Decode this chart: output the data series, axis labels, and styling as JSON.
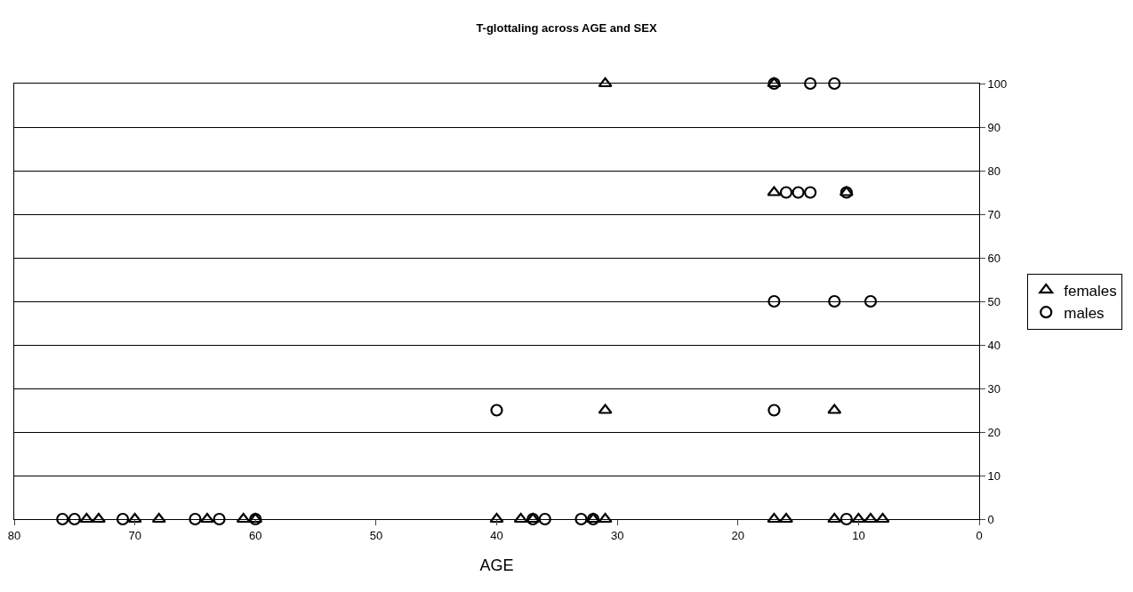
{
  "chart_data": {
    "type": "scatter",
    "title": "T-glottaling across AGE and SEX",
    "xlabel": "AGE",
    "xlim": [
      80,
      0
    ],
    "xticks": [
      80,
      70,
      60,
      50,
      40,
      30,
      20,
      10,
      0
    ],
    "ylim": [
      0,
      100
    ],
    "yticks": [
      0,
      10,
      20,
      30,
      40,
      50,
      60,
      70,
      80,
      90,
      100
    ],
    "grid": "y",
    "legend": "right",
    "series": [
      {
        "name": "females",
        "color": "#000000",
        "marker": "triangle",
        "x": [
          74,
          73,
          70,
          68,
          64,
          61,
          60,
          40,
          38,
          37,
          32,
          31,
          17,
          16,
          12,
          10,
          9,
          8,
          31,
          12,
          17,
          11,
          31,
          17
        ],
        "values": [
          0,
          0,
          0,
          0,
          0,
          0,
          0,
          0,
          0,
          0,
          0,
          0,
          0,
          0,
          0,
          0,
          0,
          0,
          25,
          25,
          75,
          75,
          100,
          100
        ]
      },
      {
        "name": "males",
        "color": "#000000",
        "marker": "circle",
        "x": [
          76,
          75,
          71,
          65,
          63,
          60,
          37,
          36,
          33,
          32,
          11,
          40,
          17,
          17,
          12,
          9,
          16,
          15,
          14,
          11,
          17,
          14,
          12
        ],
        "values": [
          0,
          0,
          0,
          0,
          0,
          0,
          0,
          0,
          0,
          0,
          0,
          25,
          25,
          50,
          50,
          50,
          75,
          75,
          75,
          75,
          100,
          100,
          100
        ]
      }
    ]
  }
}
